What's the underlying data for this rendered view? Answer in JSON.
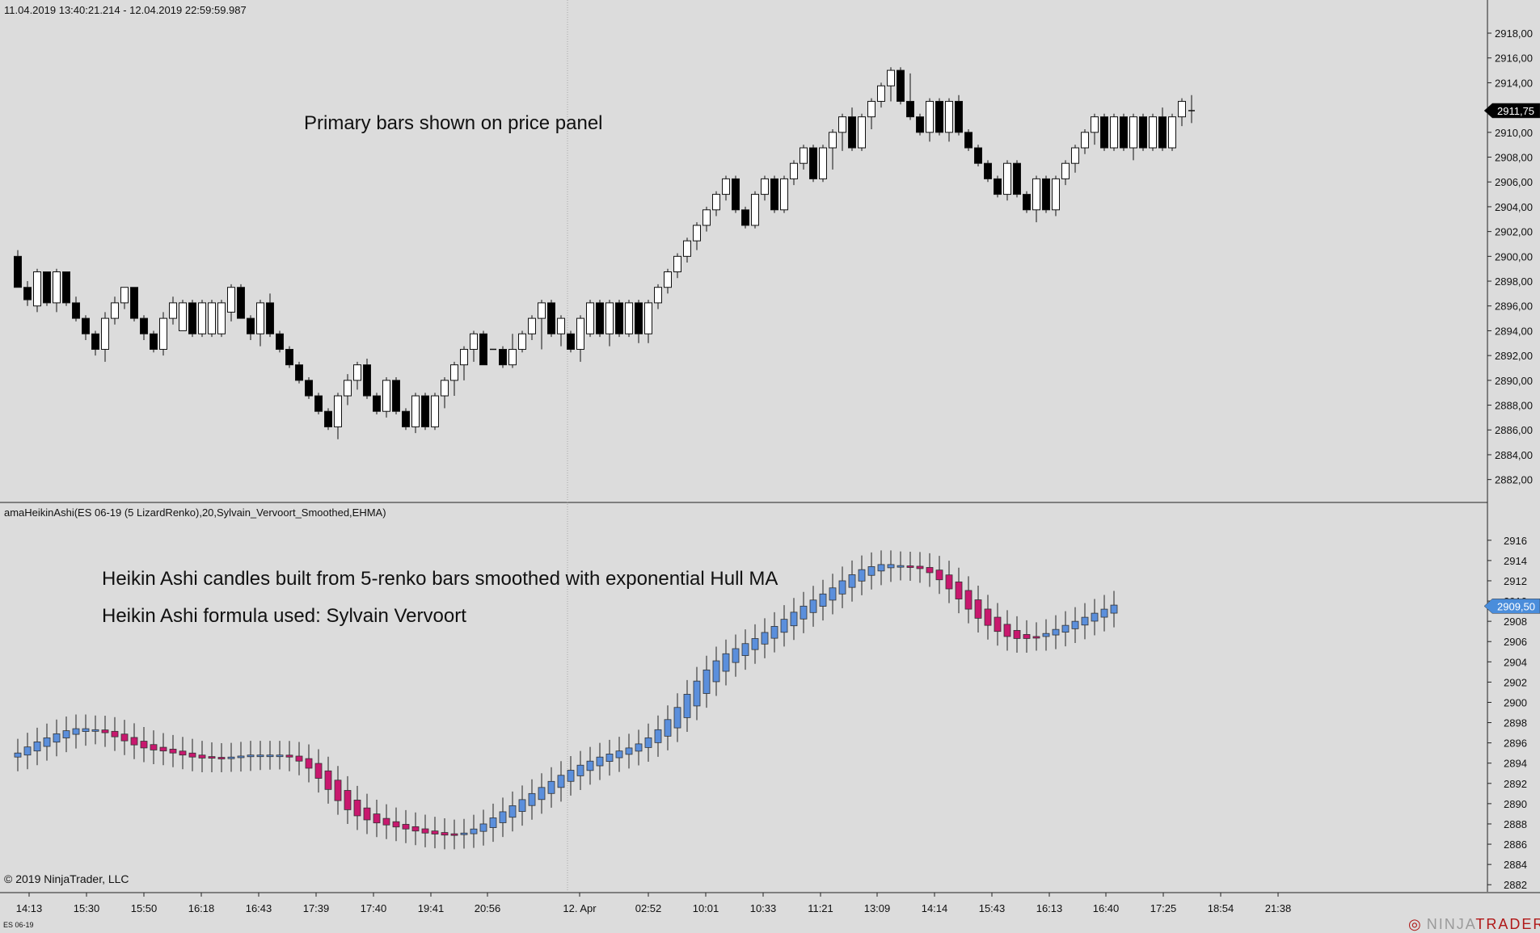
{
  "header": {
    "date_range": "11.04.2019 13:40:21.214 - 12.04.2019 22:59:59.987",
    "indicator_label": "amaHeikinAshi(ES 06-19 (5 LizardRenko),20,Sylvain_Vervoort_Smoothed,EHMA)"
  },
  "notes": {
    "price_panel": "Primary bars shown on price panel",
    "ha_line1": "Heikin Ashi candles built from 5-renko bars smoothed with exponential Hull MA",
    "ha_line2": "Heikin Ashi formula used: Sylvain Vervoort"
  },
  "footer": {
    "copyright": "© 2019 NinjaTrader, LLC",
    "symbol": "ES 06-19",
    "brand_pre": "NINJA",
    "brand_post": "TRADER",
    "brand_mark": "®"
  },
  "colors": {
    "background": "#dcdcdc",
    "up_bar": "#ffffff",
    "down_bar": "#000000",
    "ha_up": "#5b8fdc",
    "ha_down": "#c8186e",
    "price_marker_top": "#000000",
    "price_marker_bottom": "#4a8ddb"
  },
  "chart_data": [
    {
      "type": "candlestick",
      "title": "",
      "ylim": [
        2881,
        2919.5
      ],
      "y_ticks": [
        "2918,00",
        "2916,00",
        "2914,00",
        "2912,00",
        "2910,00",
        "2908,00",
        "2906,00",
        "2904,00",
        "2902,00",
        "2900,00",
        "2898,00",
        "2896,00",
        "2894,00",
        "2892,00",
        "2890,00",
        "2888,00",
        "2886,00",
        "2884,00",
        "2882,00"
      ],
      "last_price": "2911,75",
      "x_tick_labels": [
        "14:13",
        "15:30",
        "15:50",
        "16:18",
        "16:43",
        "17:39",
        "17:40",
        "19:41",
        "20:56",
        "12. Apr",
        "02:52",
        "10:01",
        "10:33",
        "11:21",
        "13:09",
        "14:14",
        "15:43",
        "16:13",
        "16:40",
        "17:25",
        "18:54",
        "21:38"
      ],
      "bars": [
        {
          "o": 2900,
          "c": 2897.5,
          "h": 2900.5,
          "l": 2897.5
        },
        {
          "o": 2897.5,
          "c": 2896.5,
          "h": 2898,
          "l": 2896
        },
        {
          "o": 2896,
          "c": 2898.75,
          "h": 2899,
          "l": 2895.5
        },
        {
          "o": 2898.75,
          "c": 2896.25,
          "h": 2898.75,
          "l": 2896
        },
        {
          "o": 2896.25,
          "c": 2898.75,
          "h": 2899,
          "l": 2895.5
        },
        {
          "o": 2898.75,
          "c": 2896.25,
          "h": 2898.75,
          "l": 2896
        },
        {
          "o": 2896.25,
          "c": 2895,
          "h": 2896.75,
          "l": 2894.75
        },
        {
          "o": 2895,
          "c": 2893.75,
          "h": 2895.25,
          "l": 2893.25
        },
        {
          "o": 2893.75,
          "c": 2892.5,
          "h": 2894,
          "l": 2892
        },
        {
          "o": 2892.5,
          "c": 2895,
          "h": 2895.5,
          "l": 2891.5
        },
        {
          "o": 2895,
          "c": 2896.25,
          "h": 2896.75,
          "l": 2894.5
        },
        {
          "o": 2896.25,
          "c": 2897.5,
          "h": 2897.5,
          "l": 2895.75
        },
        {
          "o": 2897.5,
          "c": 2895,
          "h": 2897.5,
          "l": 2894.75
        },
        {
          "o": 2895,
          "c": 2893.75,
          "h": 2895.25,
          "l": 2893.25
        },
        {
          "o": 2893.75,
          "c": 2892.5,
          "h": 2894,
          "l": 2892.25
        },
        {
          "o": 2892.5,
          "c": 2895,
          "h": 2895.5,
          "l": 2892
        },
        {
          "o": 2895,
          "c": 2896.25,
          "h": 2896.75,
          "l": 2894.5
        },
        {
          "o": 2894,
          "c": 2896.25,
          "h": 2896.5,
          "l": 2894
        },
        {
          "o": 2896.25,
          "c": 2893.75,
          "h": 2896.5,
          "l": 2893.5
        },
        {
          "o": 2893.75,
          "c": 2896.25,
          "h": 2896.5,
          "l": 2893.5
        },
        {
          "o": 2893.75,
          "c": 2896.25,
          "h": 2896.5,
          "l": 2893.5
        },
        {
          "o": 2893.75,
          "c": 2896.25,
          "h": 2896.5,
          "l": 2893.5
        },
        {
          "o": 2895.5,
          "c": 2897.5,
          "h": 2897.75,
          "l": 2894.75
        },
        {
          "o": 2897.5,
          "c": 2895,
          "h": 2897.75,
          "l": 2895
        },
        {
          "o": 2895,
          "c": 2893.75,
          "h": 2895.25,
          "l": 2893.25
        },
        {
          "o": 2893.75,
          "c": 2896.25,
          "h": 2896.5,
          "l": 2892.75
        },
        {
          "o": 2896.25,
          "c": 2893.75,
          "h": 2897,
          "l": 2893.5
        },
        {
          "o": 2893.75,
          "c": 2892.5,
          "h": 2894,
          "l": 2892.25
        },
        {
          "o": 2892.5,
          "c": 2891.25,
          "h": 2892.75,
          "l": 2891
        },
        {
          "o": 2891.25,
          "c": 2890,
          "h": 2891.5,
          "l": 2889.75
        },
        {
          "o": 2890,
          "c": 2888.75,
          "h": 2890.25,
          "l": 2888.5
        },
        {
          "o": 2888.75,
          "c": 2887.5,
          "h": 2889,
          "l": 2887.25
        },
        {
          "o": 2887.5,
          "c": 2886.25,
          "h": 2887.75,
          "l": 2886
        },
        {
          "o": 2886.25,
          "c": 2888.75,
          "h": 2889,
          "l": 2885.25
        },
        {
          "o": 2888.75,
          "c": 2890,
          "h": 2890.5,
          "l": 2888
        },
        {
          "o": 2890,
          "c": 2891.25,
          "h": 2891.5,
          "l": 2889.25
        },
        {
          "o": 2891.25,
          "c": 2888.75,
          "h": 2891.75,
          "l": 2888.5
        },
        {
          "o": 2888.75,
          "c": 2887.5,
          "h": 2889,
          "l": 2887.25
        },
        {
          "o": 2887.5,
          "c": 2890,
          "h": 2890.25,
          "l": 2887
        },
        {
          "o": 2890,
          "c": 2887.5,
          "h": 2890.25,
          "l": 2887.25
        },
        {
          "o": 2887.5,
          "c": 2886.25,
          "h": 2887.75,
          "l": 2886
        },
        {
          "o": 2886.25,
          "c": 2888.75,
          "h": 2889,
          "l": 2885.75
        },
        {
          "o": 2888.75,
          "c": 2886.25,
          "h": 2889,
          "l": 2886
        },
        {
          "o": 2886.25,
          "c": 2888.75,
          "h": 2889,
          "l": 2886
        },
        {
          "o": 2888.75,
          "c": 2890,
          "h": 2890.25,
          "l": 2887.75
        },
        {
          "o": 2890,
          "c": 2891.25,
          "h": 2891.5,
          "l": 2888.75
        },
        {
          "o": 2891.25,
          "c": 2892.5,
          "h": 2892.75,
          "l": 2890
        },
        {
          "o": 2892.5,
          "c": 2893.75,
          "h": 2894,
          "l": 2891.5
        },
        {
          "o": 2893.75,
          "c": 2891.25,
          "h": 2894,
          "l": 2891.25
        },
        {
          "o": 2892.5,
          "c": 2892.5,
          "h": 2892.5,
          "l": 2892.5
        },
        {
          "o": 2892.5,
          "c": 2891.25,
          "h": 2892.75,
          "l": 2891
        },
        {
          "o": 2891.25,
          "c": 2892.5,
          "h": 2893.75,
          "l": 2891
        },
        {
          "o": 2892.5,
          "c": 2893.75,
          "h": 2894,
          "l": 2892.25
        },
        {
          "o": 2893.75,
          "c": 2895,
          "h": 2895.25,
          "l": 2893.25
        },
        {
          "o": 2895,
          "c": 2896.25,
          "h": 2896.5,
          "l": 2892.5
        },
        {
          "o": 2896.25,
          "c": 2893.75,
          "h": 2896.5,
          "l": 2893.5
        },
        {
          "o": 2893.75,
          "c": 2895,
          "h": 2895.25,
          "l": 2892.75
        },
        {
          "o": 2893.75,
          "c": 2892.5,
          "h": 2894,
          "l": 2892.25
        },
        {
          "o": 2892.5,
          "c": 2895,
          "h": 2895.25,
          "l": 2891.5
        },
        {
          "o": 2893.75,
          "c": 2896.25,
          "h": 2896.5,
          "l": 2893.5
        },
        {
          "o": 2896.25,
          "c": 2893.75,
          "h": 2896.5,
          "l": 2893.5
        },
        {
          "o": 2893.75,
          "c": 2896.25,
          "h": 2896.5,
          "l": 2892.75
        },
        {
          "o": 2896.25,
          "c": 2893.75,
          "h": 2896.5,
          "l": 2893.5
        },
        {
          "o": 2893.75,
          "c": 2896.25,
          "h": 2896.5,
          "l": 2893.5
        },
        {
          "o": 2896.25,
          "c": 2893.75,
          "h": 2896.5,
          "l": 2893
        },
        {
          "o": 2893.75,
          "c": 2896.25,
          "h": 2896.5,
          "l": 2893
        },
        {
          "o": 2896.25,
          "c": 2897.5,
          "h": 2897.75,
          "l": 2895.75
        },
        {
          "o": 2897.5,
          "c": 2898.75,
          "h": 2899,
          "l": 2897
        },
        {
          "o": 2898.75,
          "c": 2900,
          "h": 2900.25,
          "l": 2898.25
        },
        {
          "o": 2900,
          "c": 2901.25,
          "h": 2901.5,
          "l": 2899.5
        },
        {
          "o": 2901.25,
          "c": 2902.5,
          "h": 2902.75,
          "l": 2900.5
        },
        {
          "o": 2902.5,
          "c": 2903.75,
          "h": 2904,
          "l": 2902
        },
        {
          "o": 2903.75,
          "c": 2905,
          "h": 2905.25,
          "l": 2903.25
        },
        {
          "o": 2905,
          "c": 2906.25,
          "h": 2906.5,
          "l": 2904.5
        },
        {
          "o": 2906.25,
          "c": 2903.75,
          "h": 2906.5,
          "l": 2903.5
        },
        {
          "o": 2903.75,
          "c": 2902.5,
          "h": 2904,
          "l": 2902.25
        },
        {
          "o": 2902.5,
          "c": 2905,
          "h": 2905.25,
          "l": 2902.25
        },
        {
          "o": 2905,
          "c": 2906.25,
          "h": 2906.5,
          "l": 2904.5
        },
        {
          "o": 2906.25,
          "c": 2903.75,
          "h": 2906.5,
          "l": 2903.5
        },
        {
          "o": 2903.75,
          "c": 2906.25,
          "h": 2906.5,
          "l": 2903.5
        },
        {
          "o": 2906.25,
          "c": 2907.5,
          "h": 2907.75,
          "l": 2905.75
        },
        {
          "o": 2907.5,
          "c": 2908.75,
          "h": 2909,
          "l": 2907
        },
        {
          "o": 2908.75,
          "c": 2906.25,
          "h": 2909,
          "l": 2906
        },
        {
          "o": 2906.25,
          "c": 2908.75,
          "h": 2909,
          "l": 2906
        },
        {
          "o": 2908.75,
          "c": 2910,
          "h": 2910.25,
          "l": 2907
        },
        {
          "o": 2910,
          "c": 2911.25,
          "h": 2911.5,
          "l": 2908.5
        },
        {
          "o": 2911.25,
          "c": 2908.75,
          "h": 2912,
          "l": 2908.5
        },
        {
          "o": 2908.75,
          "c": 2911.25,
          "h": 2911.5,
          "l": 2908.5
        },
        {
          "o": 2911.25,
          "c": 2912.5,
          "h": 2912.75,
          "l": 2910.25
        },
        {
          "o": 2912.5,
          "c": 2913.75,
          "h": 2914,
          "l": 2912
        },
        {
          "o": 2913.75,
          "c": 2915,
          "h": 2915.25,
          "l": 2912.5
        },
        {
          "o": 2915,
          "c": 2912.5,
          "h": 2915.25,
          "l": 2912.25
        },
        {
          "o": 2912.5,
          "c": 2911.25,
          "h": 2914.75,
          "l": 2911
        },
        {
          "o": 2911.25,
          "c": 2910,
          "h": 2911.5,
          "l": 2909.75
        },
        {
          "o": 2910,
          "c": 2912.5,
          "h": 2912.75,
          "l": 2909.25
        },
        {
          "o": 2912.5,
          "c": 2910,
          "h": 2912.75,
          "l": 2909.75
        },
        {
          "o": 2910,
          "c": 2912.5,
          "h": 2912.75,
          "l": 2909.25
        },
        {
          "o": 2912.5,
          "c": 2910,
          "h": 2913,
          "l": 2909.75
        },
        {
          "o": 2910,
          "c": 2908.75,
          "h": 2910.25,
          "l": 2908.5
        },
        {
          "o": 2908.75,
          "c": 2907.5,
          "h": 2909,
          "l": 2907.25
        },
        {
          "o": 2907.5,
          "c": 2906.25,
          "h": 2907.75,
          "l": 2906
        },
        {
          "o": 2906.25,
          "c": 2905,
          "h": 2906.5,
          "l": 2904.75
        },
        {
          "o": 2905,
          "c": 2907.5,
          "h": 2907.75,
          "l": 2904.5
        },
        {
          "o": 2907.5,
          "c": 2905,
          "h": 2907.75,
          "l": 2904.75
        },
        {
          "o": 2905,
          "c": 2903.75,
          "h": 2905.25,
          "l": 2903.5
        },
        {
          "o": 2903.75,
          "c": 2906.25,
          "h": 2906.5,
          "l": 2902.75
        },
        {
          "o": 2906.25,
          "c": 2903.75,
          "h": 2906.5,
          "l": 2903.5
        },
        {
          "o": 2903.75,
          "c": 2906.25,
          "h": 2906.5,
          "l": 2903.25
        },
        {
          "o": 2906.25,
          "c": 2907.5,
          "h": 2907.75,
          "l": 2905.75
        },
        {
          "o": 2907.5,
          "c": 2908.75,
          "h": 2909,
          "l": 2906.75
        },
        {
          "o": 2908.75,
          "c": 2910,
          "h": 2910.25,
          "l": 2908.25
        },
        {
          "o": 2910,
          "c": 2911.25,
          "h": 2911.5,
          "l": 2909
        },
        {
          "o": 2911.25,
          "c": 2908.75,
          "h": 2911.5,
          "l": 2908.5
        },
        {
          "o": 2908.75,
          "c": 2911.25,
          "h": 2911.5,
          "l": 2908.5
        },
        {
          "o": 2911.25,
          "c": 2908.75,
          "h": 2911.5,
          "l": 2908.5
        },
        {
          "o": 2908.75,
          "c": 2911.25,
          "h": 2911.5,
          "l": 2907.75
        },
        {
          "o": 2911.25,
          "c": 2908.75,
          "h": 2911.5,
          "l": 2908.5
        },
        {
          "o": 2908.75,
          "c": 2911.25,
          "h": 2911.5,
          "l": 2908.5
        },
        {
          "o": 2911.25,
          "c": 2908.75,
          "h": 2912,
          "l": 2908.5
        },
        {
          "o": 2908.75,
          "c": 2911.25,
          "h": 2911.5,
          "l": 2908.5
        },
        {
          "o": 2911.25,
          "c": 2912.5,
          "h": 2912.75,
          "l": 2910.5
        },
        {
          "o": 2911.75,
          "c": 2911.75,
          "h": 2913,
          "l": 2910.75
        }
      ]
    },
    {
      "type": "candlestick",
      "title": "",
      "ylim": [
        2881.3,
        2917.5
      ],
      "y_ticks": [
        "2916",
        "2914",
        "2912",
        "2910",
        "2908",
        "2906",
        "2904",
        "2902",
        "2900",
        "2898",
        "2896",
        "2894",
        "2892",
        "2890",
        "2888",
        "2886",
        "2884",
        "2882"
      ],
      "last_price": "2909,50",
      "closes": [
        2895,
        2895.6,
        2896.1,
        2896.5,
        2896.9,
        2897.2,
        2897.4,
        2897.4,
        2897.3,
        2897,
        2896.6,
        2896.2,
        2895.8,
        2895.5,
        2895.3,
        2895.2,
        2895,
        2894.8,
        2894.6,
        2894.5,
        2894.5,
        2894.5,
        2894.6,
        2894.7,
        2894.8,
        2894.8,
        2894.8,
        2894.8,
        2894.6,
        2894.2,
        2893.5,
        2892.5,
        2891.4,
        2890.3,
        2889.4,
        2888.8,
        2888.4,
        2888.1,
        2887.9,
        2887.7,
        2887.5,
        2887.3,
        2887.1,
        2887,
        2886.9,
        2886.9,
        2887.1,
        2887.5,
        2888,
        2888.6,
        2889.2,
        2889.8,
        2890.4,
        2891,
        2891.6,
        2892.2,
        2892.8,
        2893.3,
        2893.8,
        2894.2,
        2894.6,
        2894.9,
        2895.2,
        2895.5,
        2895.9,
        2896.5,
        2897.3,
        2898.3,
        2899.5,
        2900.8,
        2902.1,
        2903.2,
        2904.1,
        2904.8,
        2905.3,
        2905.8,
        2906.3,
        2906.9,
        2907.5,
        2908.2,
        2908.9,
        2909.5,
        2910.1,
        2910.7,
        2911.3,
        2912,
        2912.6,
        2913.1,
        2913.4,
        2913.6,
        2913.6,
        2913.5,
        2913.4,
        2913.2,
        2912.8,
        2912.1,
        2911.2,
        2910.2,
        2909.2,
        2908.3,
        2907.6,
        2907,
        2906.5,
        2906.3,
        2906.3,
        2906.5,
        2906.8,
        2907.2,
        2907.6,
        2908,
        2908.4,
        2908.8,
        2909.2,
        2909.6
      ]
    }
  ]
}
